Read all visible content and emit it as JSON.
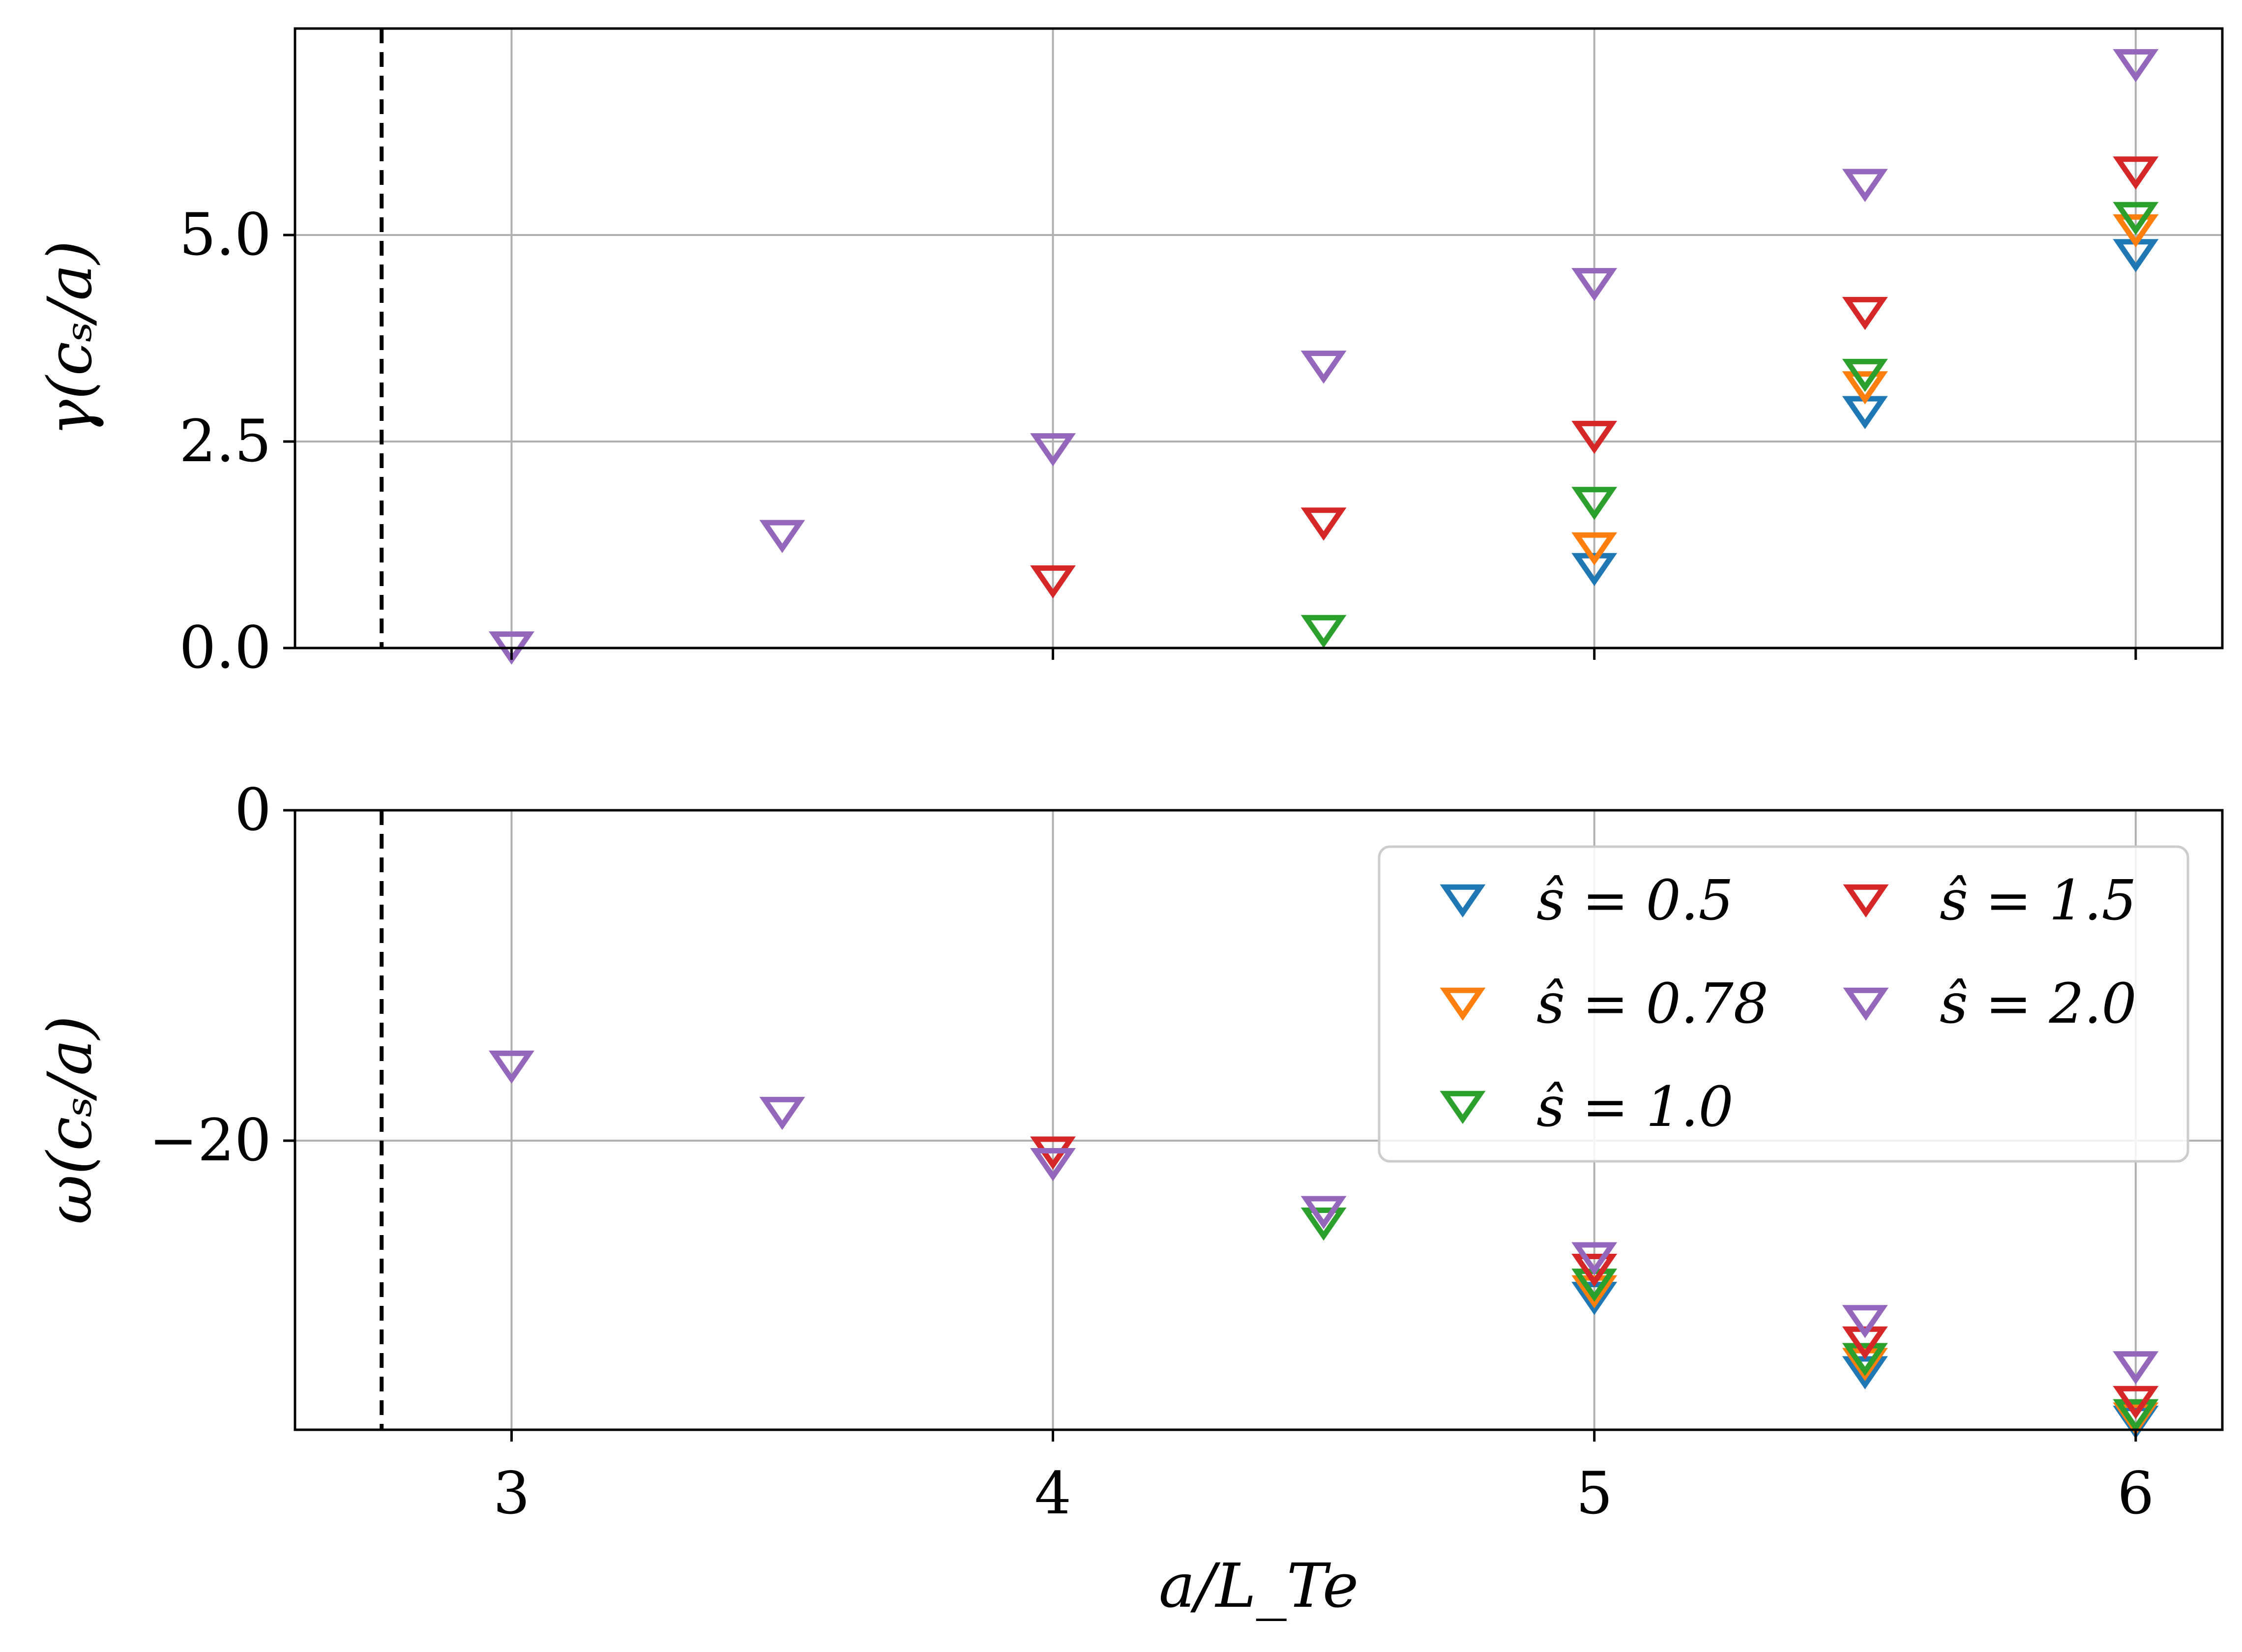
{
  "chart_data": [
    {
      "type": "scatter",
      "panel": "top",
      "ylabel": "γ(cₛ/a)",
      "xlabel": "",
      "xlim": [
        2.6,
        6.16
      ],
      "ylim": [
        0.0,
        7.5
      ],
      "xticks": [
        3,
        4,
        5,
        6
      ],
      "yticks": [
        0.0,
        2.5,
        5.0
      ],
      "ytick_labels": [
        "0.0",
        "2.5",
        "5.0"
      ],
      "grid": true,
      "threshold_x": 2.76,
      "series": [
        {
          "name": "ŝ = 0.5",
          "color": "#1f77b4",
          "x": [
            5.0,
            5.5,
            6.0
          ],
          "y": [
            1.0,
            2.9,
            4.8
          ]
        },
        {
          "name": "ŝ = 0.78",
          "color": "#ff7f0e",
          "x": [
            5.0,
            5.5,
            6.0
          ],
          "y": [
            1.25,
            3.2,
            5.1
          ]
        },
        {
          "name": "ŝ = 1.0",
          "color": "#2ca02c",
          "x": [
            4.5,
            5.0,
            5.5,
            6.0
          ],
          "y": [
            0.25,
            1.8,
            3.35,
            5.25
          ]
        },
        {
          "name": "ŝ = 1.5",
          "color": "#d62728",
          "x": [
            4.0,
            4.5,
            5.0,
            5.5,
            6.0
          ],
          "y": [
            0.85,
            1.55,
            2.6,
            4.1,
            5.8
          ]
        },
        {
          "name": "ŝ = 2.0",
          "color": "#9467bd",
          "x": [
            3.0,
            3.5,
            4.0,
            4.5,
            5.0,
            5.5,
            6.0
          ],
          "y": [
            0.05,
            1.4,
            2.45,
            3.45,
            4.45,
            5.65,
            7.1
          ]
        }
      ]
    },
    {
      "type": "scatter",
      "panel": "bottom",
      "ylabel": "ω(cₛ/a)",
      "xlabel": "a/L_Te",
      "xlim": [
        2.6,
        6.16
      ],
      "ylim": [
        -37.5,
        0
      ],
      "xticks": [
        3,
        4,
        5,
        6
      ],
      "xtick_labels": [
        "3",
        "4",
        "5",
        "6"
      ],
      "yticks": [
        0,
        -20
      ],
      "ytick_labels": [
        "0",
        "−20"
      ],
      "grid": true,
      "threshold_x": 2.76,
      "series": [
        {
          "name": "ŝ = 0.5",
          "color": "#1f77b4",
          "x": [
            5.0,
            5.5,
            6.0
          ],
          "y": [
            -29.3,
            -33.8,
            -36.8
          ]
        },
        {
          "name": "ŝ = 0.78",
          "color": "#ff7f0e",
          "x": [
            5.0,
            5.5,
            6.0
          ],
          "y": [
            -28.9,
            -33.3,
            -36.6
          ]
        },
        {
          "name": "ŝ = 1.0",
          "color": "#2ca02c",
          "x": [
            4.5,
            5.0,
            5.5,
            6.0
          ],
          "y": [
            -24.8,
            -28.5,
            -33.0,
            -36.4
          ]
        },
        {
          "name": "ŝ = 1.5",
          "color": "#d62728",
          "x": [
            4.0,
            5.0,
            5.5,
            6.0
          ],
          "y": [
            -20.5,
            -27.6,
            -32.0,
            -35.6
          ]
        },
        {
          "name": "ŝ = 2.0",
          "color": "#9467bd",
          "x": [
            3.0,
            3.5,
            4.0,
            4.5,
            5.0,
            5.5,
            6.0
          ],
          "y": [
            -15.3,
            -18.1,
            -21.2,
            -24.1,
            -26.9,
            -30.7,
            -33.5
          ]
        }
      ]
    }
  ],
  "legend": {
    "location": "upper right of bottom panel",
    "columns": 2,
    "entries": [
      {
        "label": "ŝ = 0.5",
        "color": "#1f77b4"
      },
      {
        "label": "ŝ = 0.78",
        "color": "#ff7f0e"
      },
      {
        "label": "ŝ = 1.0",
        "color": "#2ca02c"
      },
      {
        "label": "ŝ = 1.5",
        "color": "#d62728"
      },
      {
        "label": "ŝ = 2.0",
        "color": "#9467bd"
      }
    ]
  },
  "colors": {
    "grid": "#b0b0b0",
    "axes": "#000000",
    "threshold": "#000000",
    "legend_border": "#cccccc"
  }
}
